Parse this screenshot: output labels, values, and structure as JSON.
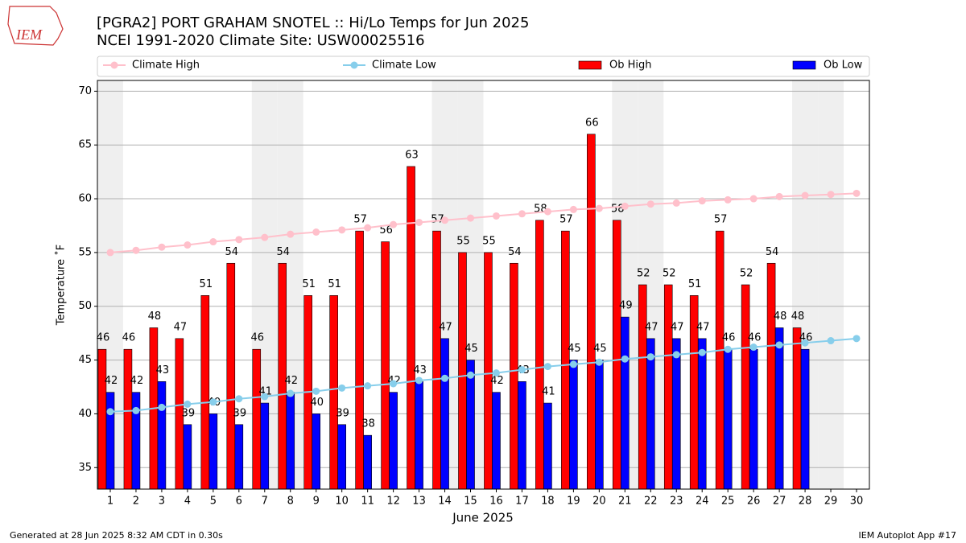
{
  "chart_data": {
    "type": "bar",
    "title": "[PGRA2] PORT GRAHAM SNOTEL :: Hi/Lo Temps for Jun 2025",
    "subtitle": "NCEI 1991-2020 Climate Site: USW00025516",
    "logo_text": "IEM",
    "x_label": "June 2025",
    "y_label": "Temperature ˚F",
    "footer_left": "Generated at 28 Jun 2025 8:32 AM CDT in 0.30s",
    "footer_right": "IEM Autoplot App #17",
    "x": [
      1,
      2,
      3,
      4,
      5,
      6,
      7,
      8,
      9,
      10,
      11,
      12,
      13,
      14,
      15,
      16,
      17,
      18,
      19,
      20,
      21,
      22,
      23,
      24,
      25,
      26,
      27,
      28,
      29,
      30
    ],
    "xlim": [
      0.5,
      30.5
    ],
    "xticks": [
      1,
      2,
      3,
      4,
      5,
      6,
      7,
      8,
      9,
      10,
      11,
      12,
      13,
      14,
      15,
      16,
      17,
      18,
      19,
      20,
      21,
      22,
      23,
      24,
      25,
      26,
      27,
      28,
      29,
      30
    ],
    "ylim": [
      33,
      71
    ],
    "yticks": [
      35,
      40,
      45,
      50,
      55,
      60,
      65,
      70
    ],
    "grid": true,
    "shaded_days": [
      1,
      7,
      8,
      14,
      15,
      21,
      22,
      28,
      29
    ],
    "shade_color": "#efefef",
    "legend": "top",
    "series": [
      {
        "name": "Climate High",
        "kind": "line",
        "color": "#ffc0cb",
        "values": [
          55.0,
          55.2,
          55.5,
          55.7,
          56.0,
          56.2,
          56.4,
          56.7,
          56.9,
          57.1,
          57.3,
          57.6,
          57.8,
          58.0,
          58.2,
          58.4,
          58.6,
          58.8,
          59.0,
          59.1,
          59.3,
          59.5,
          59.6,
          59.8,
          59.9,
          60.0,
          60.2,
          60.3,
          60.4,
          60.5
        ]
      },
      {
        "name": "Climate Low",
        "kind": "line",
        "color": "#87ceeb",
        "values": [
          40.2,
          40.3,
          40.6,
          40.9,
          41.1,
          41.4,
          41.6,
          41.9,
          42.1,
          42.4,
          42.6,
          42.8,
          43.1,
          43.3,
          43.6,
          43.8,
          44.1,
          44.4,
          44.6,
          44.8,
          45.1,
          45.3,
          45.5,
          45.7,
          46.0,
          46.2,
          46.4,
          46.6,
          46.8,
          47.0
        ]
      },
      {
        "name": "Ob High",
        "kind": "bar",
        "color": "#ff0000",
        "values": [
          46,
          46,
          48,
          47,
          51,
          54,
          46,
          54,
          51,
          51,
          57,
          56,
          63,
          57,
          55,
          55,
          54,
          58,
          57,
          66,
          58,
          52,
          52,
          51,
          57,
          52,
          54,
          48,
          null,
          null
        ]
      },
      {
        "name": "Ob Low",
        "kind": "bar",
        "color": "#0000ff",
        "values": [
          42,
          42,
          43,
          39,
          40,
          39,
          41,
          42,
          40,
          39,
          38,
          42,
          43,
          47,
          45,
          42,
          43,
          41,
          45,
          45,
          49,
          47,
          47,
          47,
          46,
          46,
          48,
          46,
          null,
          null
        ]
      }
    ]
  }
}
